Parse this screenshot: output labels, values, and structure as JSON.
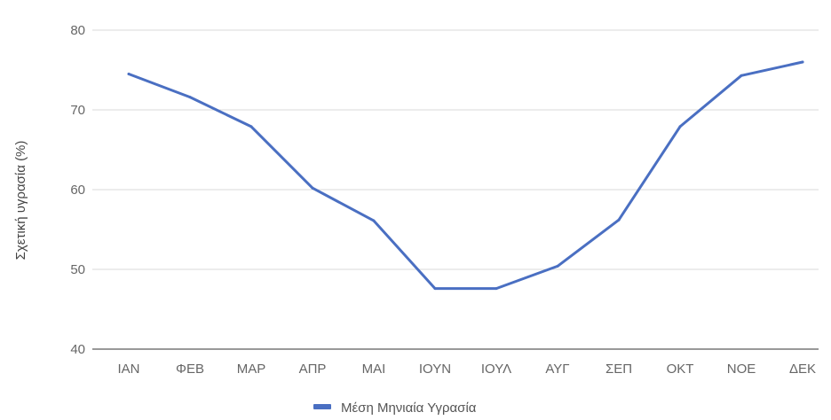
{
  "chart_data": {
    "type": "line",
    "title": "",
    "xlabel": "",
    "ylabel": "Σχετική υγρασία (%)",
    "categories": [
      "ΙΑΝ",
      "ΦΕΒ",
      "ΜΑΡ",
      "ΑΠΡ",
      "ΜΑΙ",
      "ΙΟΥΝ",
      "ΙΟΥΛ",
      "ΑΥΓ",
      "ΣΕΠ",
      "ΟΚΤ",
      "ΝΟΕ",
      "ΔΕΚ"
    ],
    "series": [
      {
        "name": "Μέση Μηνιαία Υγρασία",
        "color": "#4A6FC2",
        "values": [
          74.5,
          71.6,
          67.9,
          60.2,
          56.1,
          47.6,
          47.6,
          50.4,
          56.2,
          67.9,
          74.3,
          76.0
        ]
      }
    ],
    "ylim": [
      40,
      80
    ],
    "yticks": [
      40,
      50,
      60,
      70,
      80
    ],
    "grid": true,
    "legend_position": "bottom"
  }
}
